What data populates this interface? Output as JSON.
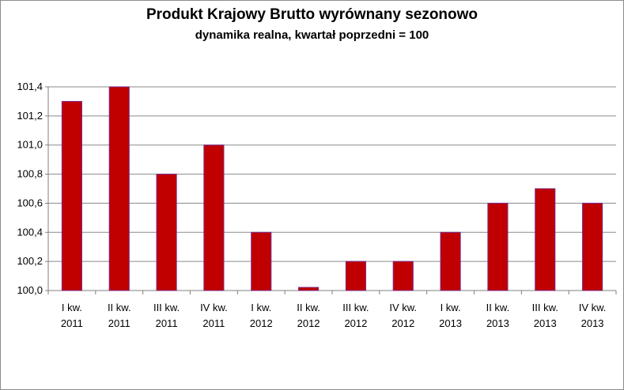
{
  "chart_data": {
    "type": "bar",
    "title": "Produkt Krajowy Brutto wyrównany sezonowo",
    "subtitle": "dynamika realna, kwartał poprzedni = 100",
    "xlabel": "",
    "ylabel": "",
    "categories": [
      [
        "I kw.",
        "2011"
      ],
      [
        "II kw.",
        "2011"
      ],
      [
        "III kw.",
        "2011"
      ],
      [
        "IV kw.",
        "2011"
      ],
      [
        "I kw.",
        "2012"
      ],
      [
        "II kw.",
        "2012"
      ],
      [
        "III kw.",
        "2012"
      ],
      [
        "IV kw.",
        "2012"
      ],
      [
        "I kw.",
        "2013"
      ],
      [
        "II kw.",
        "2013"
      ],
      [
        "III kw.",
        "2013"
      ],
      [
        "IV kw.",
        "2013"
      ]
    ],
    "values": [
      101.3,
      101.4,
      100.8,
      101.0,
      100.4,
      100.0,
      100.2,
      100.2,
      100.4,
      100.6,
      100.7,
      100.6
    ],
    "ylim": [
      100.0,
      101.4
    ],
    "yticks": [
      "100,0",
      "100,2",
      "100,4",
      "100,6",
      "100,8",
      "101,0",
      "101,2",
      "101,4"
    ],
    "grid": true,
    "legend": "none",
    "bar_color": "#c00000",
    "bar_edge_color": "#7a2a8a"
  }
}
